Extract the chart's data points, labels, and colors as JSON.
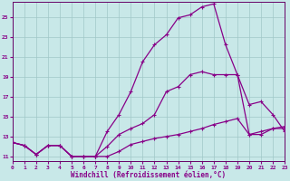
{
  "xlabel": "Windchill (Refroidissement éolien,°C)",
  "bg_color": "#c8e8e8",
  "grid_color": "#a0c8c8",
  "line_color": "#880088",
  "spine_color": "#660066",
  "xmin": 0,
  "xmax": 23,
  "ymin": 10.5,
  "ymax": 26.5,
  "yticks": [
    11,
    13,
    15,
    17,
    19,
    21,
    23,
    25
  ],
  "xticks": [
    0,
    1,
    2,
    3,
    4,
    5,
    6,
    7,
    8,
    9,
    10,
    11,
    12,
    13,
    14,
    15,
    16,
    17,
    18,
    19,
    20,
    21,
    22,
    23
  ],
  "line2_x": [
    0,
    1,
    2,
    3,
    4,
    5,
    6,
    7,
    8,
    9,
    10,
    11,
    12,
    13,
    14,
    15,
    16,
    17,
    18,
    19,
    20,
    21,
    22,
    23
  ],
  "line2_y": [
    12.4,
    12.1,
    11.2,
    12.1,
    12.1,
    11.0,
    11.0,
    11.0,
    13.5,
    15.2,
    17.5,
    20.5,
    22.2,
    23.2,
    24.9,
    25.2,
    26.0,
    26.3,
    22.2,
    19.2,
    13.2,
    13.2,
    13.8,
    13.8
  ],
  "line1_x": [
    0,
    1,
    2,
    3,
    4,
    5,
    6,
    7,
    8,
    9,
    10,
    11,
    12,
    13,
    14,
    15,
    16,
    17,
    18,
    19,
    20,
    21,
    22,
    23
  ],
  "line1_y": [
    12.4,
    12.1,
    11.2,
    12.1,
    12.1,
    11.0,
    11.0,
    11.0,
    12.0,
    13.2,
    13.8,
    14.3,
    15.2,
    17.5,
    18.0,
    19.2,
    19.5,
    19.2,
    19.2,
    19.2,
    16.2,
    16.5,
    15.2,
    13.5
  ],
  "line3_x": [
    0,
    1,
    2,
    3,
    4,
    5,
    6,
    7,
    8,
    9,
    10,
    11,
    12,
    13,
    14,
    15,
    16,
    17,
    18,
    19,
    20,
    21,
    22,
    23
  ],
  "line3_y": [
    12.4,
    12.1,
    11.2,
    12.1,
    12.1,
    11.0,
    11.0,
    11.0,
    11.0,
    11.5,
    12.2,
    12.5,
    12.8,
    13.0,
    13.2,
    13.5,
    13.8,
    14.2,
    14.5,
    14.8,
    13.2,
    13.5,
    13.8,
    14.0
  ]
}
